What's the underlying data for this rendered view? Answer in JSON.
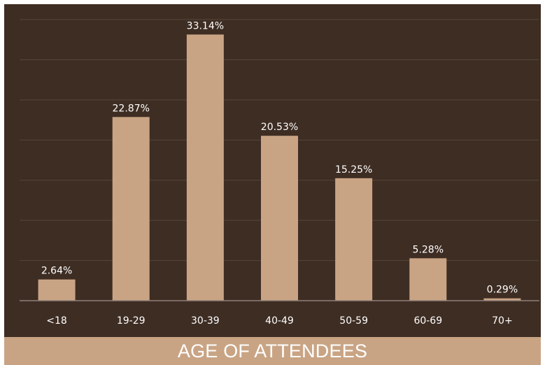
{
  "chart_data": {
    "type": "bar",
    "title": "AGE OF ATTENDEES",
    "categories": [
      "<18",
      "19-29",
      "30-39",
      "40-49",
      "50-59",
      "60-69",
      "70+"
    ],
    "values": [
      2.64,
      22.87,
      33.14,
      20.53,
      15.25,
      5.28,
      0.29
    ],
    "value_labels": [
      "2.64%",
      "22.87%",
      "33.14%",
      "20.53%",
      "15.25%",
      "5.28%",
      "0.29%"
    ],
    "xlabel": "",
    "ylabel": "",
    "ylim": [
      0,
      35
    ],
    "y_axis_visible": false,
    "grid": true,
    "legend": "none"
  },
  "colors": {
    "background": "#3e2d23",
    "bar": "#c9a484",
    "grid": "#55453a",
    "axis": "#8f8079",
    "text": "#ffffff",
    "title_bar": "#c9a484"
  }
}
